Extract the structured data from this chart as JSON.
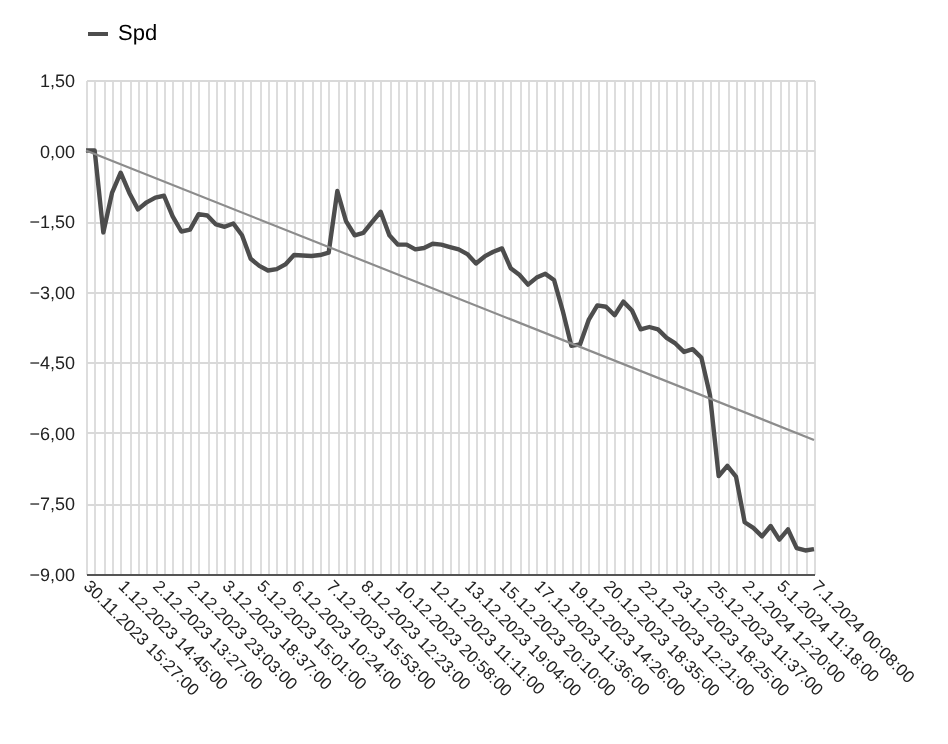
{
  "chart_data": {
    "type": "line",
    "categories": [
      "30.11.2023 15:27:00",
      null,
      null,
      null,
      "1.12.2023 14:45:00",
      null,
      null,
      null,
      "2.12.2023 13:27:00",
      null,
      null,
      null,
      "2.12.2023 23:03:00",
      null,
      null,
      null,
      "3.12.2023 18:37:00",
      null,
      null,
      null,
      "5.12.2023 15:01:00",
      null,
      null,
      null,
      "6.12.2023 10:24:00",
      null,
      null,
      null,
      "7.12.2023 15:53:00",
      null,
      null,
      null,
      "8.12.2023 12:23:00",
      null,
      null,
      null,
      "10.12.2023 20:58:00",
      null,
      null,
      null,
      "12.12.2023 11:11:00",
      null,
      null,
      null,
      "13.12.2023 19:04:00",
      null,
      null,
      null,
      "15.12.2023 20:10:00",
      null,
      null,
      null,
      "17.12.2023 11:36:00",
      null,
      null,
      null,
      "19.12.2023 14:26:00",
      null,
      null,
      null,
      "20.12.2023 18:35:00",
      null,
      null,
      null,
      "22.12.2023 12:21:00",
      null,
      null,
      null,
      "23.12.2023 18:25:00",
      null,
      null,
      null,
      "25.12.2023 11:37:00",
      null,
      null,
      null,
      "2.1.2024 12:20:00",
      null,
      null,
      null,
      "5.1.2024 11:18:00",
      null,
      null,
      null,
      "7.1.2024 00:08:00"
    ],
    "series": [
      {
        "name": "Spd",
        "color": "#4d4d4d",
        "values": [
          0.0,
          0.0,
          -1.74,
          -0.9,
          -0.47,
          -0.9,
          -1.25,
          -1.1,
          -1.0,
          -0.96,
          -1.4,
          -1.72,
          -1.68,
          -1.35,
          -1.38,
          -1.57,
          -1.62,
          -1.55,
          -1.8,
          -2.3,
          -2.45,
          -2.55,
          -2.52,
          -2.42,
          -2.22,
          -2.23,
          -2.24,
          -2.22,
          -2.17,
          -0.86,
          -1.5,
          -1.8,
          -1.75,
          -1.52,
          -1.3,
          -1.8,
          -2.0,
          -2.0,
          -2.1,
          -2.07,
          -1.98,
          -2.0,
          -2.05,
          -2.1,
          -2.2,
          -2.4,
          -2.25,
          -2.15,
          -2.08,
          -2.5,
          -2.64,
          -2.85,
          -2.7,
          -2.62,
          -2.75,
          -3.4,
          -4.15,
          -4.12,
          -3.6,
          -3.29,
          -3.32,
          -3.5,
          -3.21,
          -3.4,
          -3.8,
          -3.75,
          -3.8,
          -3.98,
          -4.1,
          -4.28,
          -4.22,
          -4.4,
          -5.2,
          -6.92,
          -6.7,
          -6.93,
          -7.9,
          -8.02,
          -8.2,
          -7.98,
          -8.27,
          -8.05,
          -8.45,
          -8.5,
          -8.47
        ]
      },
      {
        "type": "line",
        "color": "#8c8c8c",
        "x": [
          "30.11.2023 15:27:00",
          "7.1.2024 00:08:00"
        ],
        "values": [
          0.0,
          -6.15
        ]
      }
    ],
    "ylim": [
      -9,
      1.5
    ],
    "yticks": [
      {
        "value": 1.5,
        "label": "1,50"
      },
      {
        "value": 0,
        "label": "0,00"
      },
      {
        "value": -1.5,
        "label": "−1,50"
      },
      {
        "value": -3,
        "label": "−3,00"
      },
      {
        "value": -4.5,
        "label": "−4,50"
      },
      {
        "value": -6,
        "label": "−6,00"
      },
      {
        "value": -7.5,
        "label": "−7,50"
      },
      {
        "value": -9,
        "label": "−9,00"
      }
    ],
    "grid": true,
    "legend": "top"
  }
}
